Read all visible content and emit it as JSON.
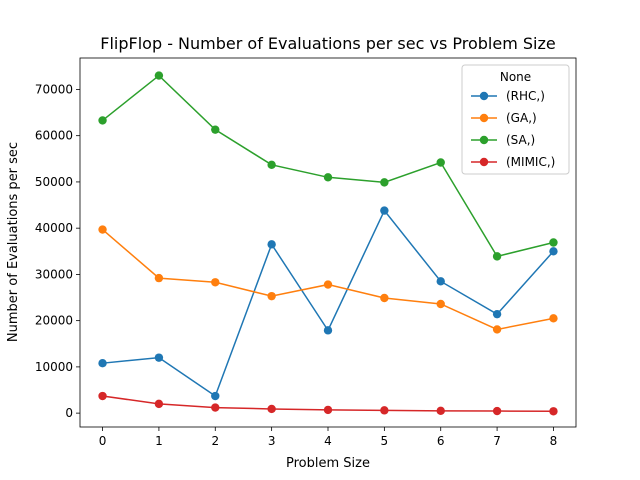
{
  "chart_data": {
    "type": "line",
    "title": "FlipFlop - Number of Evaluations per sec vs Problem Size",
    "xlabel": "Problem Size",
    "ylabel": "Number of Evaluations per sec",
    "x": [
      0,
      1,
      2,
      3,
      4,
      5,
      6,
      7,
      8
    ],
    "xlim": [
      -0.4,
      8.4
    ],
    "ylim": [
      -3000,
      76800
    ],
    "xticks": [
      "0",
      "1",
      "2",
      "3",
      "4",
      "5",
      "6",
      "7",
      "8"
    ],
    "yticks": [
      {
        "value": 0,
        "label": "0"
      },
      {
        "value": 10000,
        "label": "10000"
      },
      {
        "value": 20000,
        "label": "20000"
      },
      {
        "value": 30000,
        "label": "30000"
      },
      {
        "value": 40000,
        "label": "40000"
      },
      {
        "value": 50000,
        "label": "50000"
      },
      {
        "value": 60000,
        "label": "60000"
      },
      {
        "value": 70000,
        "label": "70000"
      }
    ],
    "grid": false,
    "legend": {
      "title": "None",
      "position": "top-right"
    },
    "series": [
      {
        "name": "(RHC,)",
        "color": "#1f77b4",
        "values": [
          10800,
          12000,
          3700,
          36500,
          17900,
          43800,
          28500,
          21400,
          35000
        ]
      },
      {
        "name": "(GA,)",
        "color": "#ff7f0e",
        "values": [
          39700,
          29200,
          28300,
          25300,
          27800,
          24900,
          23600,
          18100,
          20500
        ]
      },
      {
        "name": "(SA,)",
        "color": "#2ca02c",
        "values": [
          63300,
          73000,
          61300,
          53700,
          51000,
          49900,
          54200,
          33900,
          36900
        ]
      },
      {
        "name": "(MIMIC,)",
        "color": "#d62728",
        "values": [
          3700,
          2000,
          1200,
          900,
          700,
          600,
          500,
          450,
          400
        ]
      }
    ]
  }
}
